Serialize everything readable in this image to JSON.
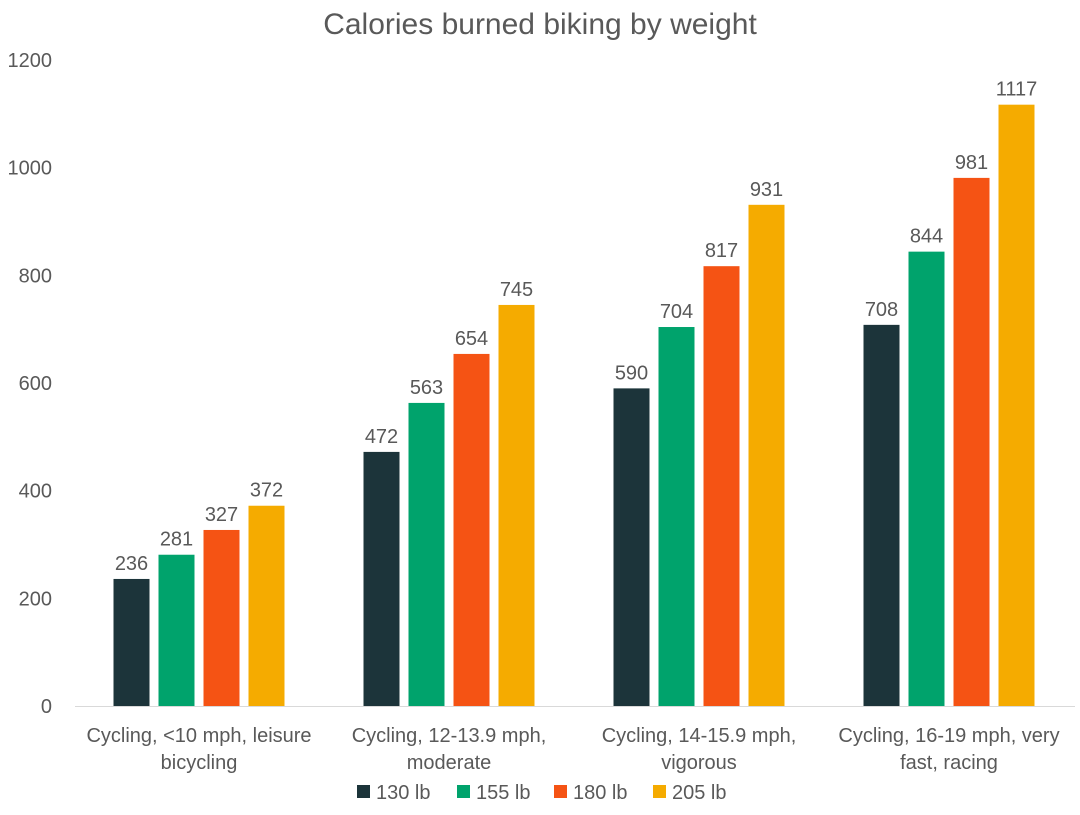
{
  "chart_data": {
    "type": "bar",
    "title": "Calories burned biking by weight",
    "xlabel": "",
    "ylabel": "",
    "ylim": [
      0,
      1200
    ],
    "yticks": [
      0,
      200,
      400,
      600,
      800,
      1000,
      1200
    ],
    "grid": false,
    "legend_position": "bottom",
    "categories": [
      [
        "Cycling, <10 mph, leisure",
        "bicycling"
      ],
      [
        "Cycling, 12-13.9 mph,",
        "moderate"
      ],
      [
        "Cycling, 14-15.9 mph,",
        "vigorous"
      ],
      [
        "Cycling, 16-19 mph, very",
        "fast, racing"
      ]
    ],
    "series": [
      {
        "name": "130 lb",
        "color": "#1c343a",
        "values": [
          236,
          472,
          590,
          708
        ]
      },
      {
        "name": "155 lb",
        "color": "#00a36c",
        "values": [
          281,
          563,
          704,
          844
        ]
      },
      {
        "name": "180 lb",
        "color": "#f55314",
        "values": [
          327,
          654,
          817,
          981
        ]
      },
      {
        "name": "205 lb",
        "color": "#f5ab00",
        "values": [
          372,
          745,
          931,
          1117
        ]
      }
    ],
    "data_labels": true
  }
}
